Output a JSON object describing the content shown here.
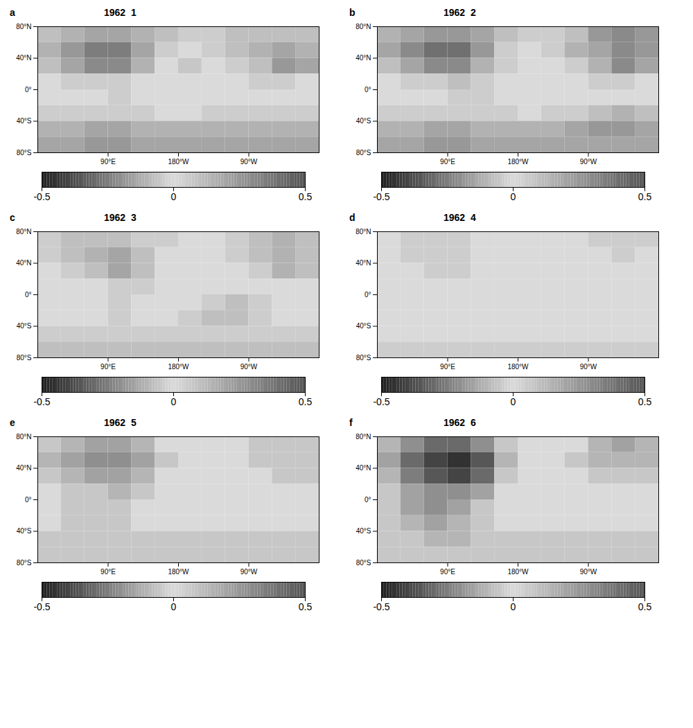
{
  "chart_data": [
    {
      "type": "heatmap",
      "panel_label": "a",
      "title": "1962  1",
      "x_edges": [
        0,
        30,
        60,
        90,
        120,
        150,
        180,
        210,
        240,
        270,
        300,
        330,
        360
      ],
      "y_edges": [
        80,
        60,
        40,
        20,
        0,
        -20,
        -40,
        -60,
        -80
      ],
      "values": [
        [
          0.1,
          0.15,
          0.2,
          0.2,
          0.15,
          0.1,
          0.05,
          0.05,
          0.1,
          0.1,
          0.1,
          0.1
        ],
        [
          0.15,
          0.25,
          0.35,
          0.35,
          0.2,
          0.05,
          0.0,
          0.05,
          0.1,
          0.15,
          0.2,
          0.15
        ],
        [
          0.1,
          0.2,
          0.3,
          0.3,
          0.15,
          0.0,
          -0.05,
          0.0,
          0.05,
          0.1,
          0.25,
          0.2
        ],
        [
          0.0,
          0.05,
          0.05,
          0.05,
          0.0,
          0.0,
          0.0,
          0.0,
          0.0,
          0.05,
          0.05,
          0.0
        ],
        [
          0.0,
          0.0,
          0.0,
          0.05,
          0.0,
          0.0,
          0.0,
          0.0,
          0.0,
          0.0,
          0.0,
          0.0
        ],
        [
          0.05,
          0.05,
          0.05,
          0.05,
          0.05,
          0.0,
          0.0,
          0.05,
          0.05,
          0.05,
          0.05,
          0.05
        ],
        [
          0.15,
          0.15,
          0.2,
          0.2,
          0.15,
          0.15,
          0.15,
          0.15,
          0.15,
          0.15,
          0.15,
          0.15
        ],
        [
          0.2,
          0.2,
          0.25,
          0.25,
          0.2,
          0.2,
          0.2,
          0.2,
          0.2,
          0.2,
          0.2,
          0.2
        ]
      ],
      "xlim": [
        0,
        360
      ],
      "ylim": [
        -80,
        80
      ],
      "xticks": [
        {
          "value": 90,
          "label": "90°E"
        },
        {
          "value": 180,
          "label": "180°W"
        },
        {
          "value": 270,
          "label": "90°W"
        }
      ],
      "yticks": [
        {
          "value": 80,
          "label": "80°N"
        },
        {
          "value": 40,
          "label": "40°N"
        },
        {
          "value": 0,
          "label": "0°"
        },
        {
          "value": -40,
          "label": "40°S"
        },
        {
          "value": -80,
          "label": "80°S"
        }
      ],
      "colorbar": {
        "range": [
          -0.5,
          0.5
        ],
        "ticks": [
          -0.5,
          0,
          0.5
        ]
      }
    },
    {
      "type": "heatmap",
      "panel_label": "b",
      "title": "1962  2",
      "x_edges": [
        0,
        30,
        60,
        90,
        120,
        150,
        180,
        210,
        240,
        270,
        300,
        330,
        360
      ],
      "y_edges": [
        80,
        60,
        40,
        20,
        0,
        -20,
        -40,
        -60,
        -80
      ],
      "values": [
        [
          0.15,
          0.2,
          0.25,
          0.25,
          0.2,
          0.1,
          0.05,
          0.05,
          0.1,
          0.25,
          0.3,
          0.25
        ],
        [
          0.2,
          0.3,
          0.4,
          0.4,
          0.25,
          0.05,
          0.0,
          0.05,
          0.15,
          0.2,
          0.3,
          0.25
        ],
        [
          0.1,
          0.2,
          0.3,
          0.3,
          0.15,
          0.05,
          0.0,
          0.0,
          0.05,
          0.15,
          0.3,
          0.2
        ],
        [
          0.0,
          0.05,
          0.05,
          0.1,
          0.05,
          0.0,
          0.0,
          0.0,
          0.0,
          0.05,
          0.05,
          0.0
        ],
        [
          0.0,
          0.0,
          0.0,
          0.05,
          0.05,
          0.0,
          0.0,
          0.0,
          0.0,
          0.0,
          0.0,
          0.0
        ],
        [
          0.05,
          0.05,
          0.05,
          0.05,
          0.05,
          0.05,
          0.0,
          0.05,
          0.05,
          0.1,
          0.15,
          0.1
        ],
        [
          0.15,
          0.15,
          0.2,
          0.2,
          0.15,
          0.15,
          0.15,
          0.15,
          0.2,
          0.25,
          0.25,
          0.2
        ],
        [
          0.2,
          0.2,
          0.25,
          0.25,
          0.2,
          0.2,
          0.2,
          0.2,
          0.2,
          0.2,
          0.2,
          0.2
        ]
      ],
      "xlim": [
        0,
        360
      ],
      "ylim": [
        -80,
        80
      ],
      "xticks": [
        {
          "value": 90,
          "label": "90°E"
        },
        {
          "value": 180,
          "label": "180°W"
        },
        {
          "value": 270,
          "label": "90°W"
        }
      ],
      "yticks": [
        {
          "value": 80,
          "label": "80°N"
        },
        {
          "value": 40,
          "label": "40°N"
        },
        {
          "value": 0,
          "label": "0°"
        },
        {
          "value": -40,
          "label": "40°S"
        },
        {
          "value": -80,
          "label": "80°S"
        }
      ],
      "colorbar": {
        "range": [
          -0.5,
          0.5
        ],
        "ticks": [
          -0.5,
          0,
          0.5
        ]
      }
    },
    {
      "type": "heatmap",
      "panel_label": "c",
      "title": "1962  3",
      "x_edges": [
        0,
        30,
        60,
        90,
        120,
        150,
        180,
        210,
        240,
        270,
        300,
        330,
        360
      ],
      "y_edges": [
        80,
        60,
        40,
        20,
        0,
        -20,
        -40,
        -60,
        -80
      ],
      "values": [
        [
          0.05,
          0.1,
          0.1,
          0.1,
          0.05,
          0.05,
          0.0,
          0.0,
          0.05,
          0.1,
          0.15,
          0.1
        ],
        [
          0.05,
          0.1,
          0.15,
          0.2,
          0.1,
          0.0,
          0.0,
          0.0,
          0.05,
          0.1,
          0.15,
          0.1
        ],
        [
          0.0,
          0.05,
          0.1,
          0.2,
          0.1,
          0.0,
          0.0,
          0.0,
          0.0,
          0.05,
          0.15,
          0.1
        ],
        [
          0.0,
          0.0,
          0.0,
          0.05,
          0.05,
          0.0,
          0.0,
          0.0,
          0.0,
          0.0,
          0.0,
          0.0
        ],
        [
          0.0,
          0.0,
          0.0,
          0.05,
          0.0,
          0.0,
          0.0,
          0.05,
          0.1,
          0.05,
          0.0,
          0.0
        ],
        [
          0.0,
          0.0,
          0.0,
          0.05,
          0.0,
          0.0,
          0.05,
          0.1,
          0.1,
          0.05,
          0.0,
          0.0
        ],
        [
          0.05,
          0.05,
          0.05,
          0.05,
          0.05,
          0.05,
          0.05,
          0.05,
          0.05,
          0.05,
          0.05,
          0.05
        ],
        [
          0.1,
          0.1,
          0.1,
          0.1,
          0.1,
          0.1,
          0.1,
          0.1,
          0.1,
          0.1,
          0.1,
          0.1
        ]
      ],
      "xlim": [
        0,
        360
      ],
      "ylim": [
        -80,
        80
      ],
      "xticks": [
        {
          "value": 90,
          "label": "90°E"
        },
        {
          "value": 180,
          "label": "180°W"
        },
        {
          "value": 270,
          "label": "90°W"
        }
      ],
      "yticks": [
        {
          "value": 80,
          "label": "80°N"
        },
        {
          "value": 40,
          "label": "40°N"
        },
        {
          "value": 0,
          "label": "0°"
        },
        {
          "value": -40,
          "label": "40°S"
        },
        {
          "value": -80,
          "label": "80°S"
        }
      ],
      "colorbar": {
        "range": [
          -0.5,
          0.5
        ],
        "ticks": [
          -0.5,
          0,
          0.5
        ]
      }
    },
    {
      "type": "heatmap",
      "panel_label": "d",
      "title": "1962  4",
      "x_edges": [
        0,
        30,
        60,
        90,
        120,
        150,
        180,
        210,
        240,
        270,
        300,
        330,
        360
      ],
      "y_edges": [
        80,
        60,
        40,
        20,
        0,
        -20,
        -40,
        -60,
        -80
      ],
      "values": [
        [
          0.0,
          0.05,
          0.05,
          0.05,
          0.0,
          0.0,
          0.0,
          0.0,
          0.0,
          0.05,
          0.05,
          0.05
        ],
        [
          0.0,
          0.05,
          0.05,
          0.05,
          0.0,
          0.0,
          0.0,
          0.0,
          0.0,
          0.0,
          0.05,
          0.0
        ],
        [
          0.0,
          0.0,
          0.05,
          0.05,
          0.0,
          0.0,
          0.0,
          0.0,
          0.0,
          0.0,
          0.0,
          0.0
        ],
        [
          0.0,
          0.0,
          0.0,
          0.0,
          0.0,
          0.0,
          0.0,
          0.0,
          0.0,
          0.0,
          0.0,
          0.0
        ],
        [
          0.0,
          0.0,
          0.0,
          0.0,
          0.0,
          0.0,
          0.0,
          0.0,
          0.0,
          0.0,
          0.0,
          0.0
        ],
        [
          0.0,
          0.0,
          0.0,
          0.0,
          0.0,
          0.0,
          0.0,
          0.0,
          0.0,
          0.0,
          0.0,
          0.0
        ],
        [
          0.0,
          0.0,
          0.0,
          0.0,
          0.0,
          0.0,
          0.0,
          0.0,
          0.0,
          0.0,
          0.0,
          0.0
        ],
        [
          0.05,
          0.05,
          0.05,
          0.05,
          0.05,
          0.05,
          0.05,
          0.05,
          0.05,
          0.05,
          0.05,
          0.05
        ]
      ],
      "xlim": [
        0,
        360
      ],
      "ylim": [
        -80,
        80
      ],
      "xticks": [
        {
          "value": 90,
          "label": "90°E"
        },
        {
          "value": 180,
          "label": "180°W"
        },
        {
          "value": 270,
          "label": "90°W"
        }
      ],
      "yticks": [
        {
          "value": 80,
          "label": "80°N"
        },
        {
          "value": 40,
          "label": "40°N"
        },
        {
          "value": 0,
          "label": "0°"
        },
        {
          "value": -40,
          "label": "40°S"
        },
        {
          "value": -80,
          "label": "80°S"
        }
      ],
      "colorbar": {
        "range": [
          -0.5,
          0.5
        ],
        "ticks": [
          -0.5,
          0,
          0.5
        ]
      }
    },
    {
      "type": "heatmap",
      "panel_label": "e",
      "title": "1962  5",
      "x_edges": [
        0,
        30,
        60,
        90,
        120,
        150,
        180,
        210,
        240,
        270,
        300,
        330,
        360
      ],
      "y_edges": [
        80,
        60,
        40,
        20,
        0,
        -20,
        -40,
        -60,
        -80
      ],
      "values": [
        [
          -0.05,
          -0.1,
          -0.15,
          -0.15,
          -0.1,
          0.0,
          0.0,
          0.0,
          0.0,
          -0.05,
          -0.05,
          -0.05
        ],
        [
          -0.1,
          -0.15,
          -0.2,
          -0.2,
          -0.15,
          -0.05,
          0.0,
          0.0,
          0.0,
          -0.05,
          -0.05,
          -0.05
        ],
        [
          -0.05,
          -0.1,
          -0.15,
          -0.15,
          -0.1,
          0.0,
          0.0,
          0.0,
          0.0,
          0.0,
          -0.05,
          -0.05
        ],
        [
          0.0,
          -0.05,
          -0.05,
          -0.1,
          -0.05,
          0.0,
          0.0,
          0.0,
          0.0,
          0.0,
          0.0,
          0.0
        ],
        [
          0.0,
          -0.05,
          -0.05,
          -0.05,
          0.0,
          0.0,
          0.0,
          0.0,
          0.0,
          0.0,
          0.0,
          0.0
        ],
        [
          0.0,
          -0.05,
          -0.05,
          -0.05,
          0.0,
          0.0,
          0.0,
          0.0,
          0.0,
          0.0,
          0.0,
          0.0
        ],
        [
          -0.05,
          -0.05,
          -0.05,
          -0.05,
          -0.05,
          -0.05,
          -0.05,
          -0.05,
          -0.05,
          -0.05,
          -0.05,
          -0.05
        ],
        [
          -0.05,
          -0.05,
          -0.05,
          -0.05,
          -0.05,
          -0.05,
          -0.05,
          -0.05,
          -0.05,
          -0.05,
          -0.05,
          -0.05
        ]
      ],
      "xlim": [
        0,
        360
      ],
      "ylim": [
        -80,
        80
      ],
      "xticks": [
        {
          "value": 90,
          "label": "90°E"
        },
        {
          "value": 180,
          "label": "180°W"
        },
        {
          "value": 270,
          "label": "90°W"
        }
      ],
      "yticks": [
        {
          "value": 80,
          "label": "80°N"
        },
        {
          "value": 40,
          "label": "40°N"
        },
        {
          "value": 0,
          "label": "0°"
        },
        {
          "value": -40,
          "label": "40°S"
        },
        {
          "value": -80,
          "label": "80°S"
        }
      ],
      "colorbar": {
        "range": [
          -0.5,
          0.5
        ],
        "ticks": [
          -0.5,
          0,
          0.5
        ]
      }
    },
    {
      "type": "heatmap",
      "panel_label": "f",
      "title": "1962  6",
      "x_edges": [
        0,
        30,
        60,
        90,
        120,
        150,
        180,
        210,
        240,
        270,
        300,
        330,
        360
      ],
      "y_edges": [
        80,
        60,
        40,
        20,
        0,
        -20,
        -40,
        -60,
        -80
      ],
      "values": [
        [
          -0.1,
          -0.2,
          -0.3,
          -0.3,
          -0.2,
          -0.05,
          0.0,
          0.0,
          0.0,
          -0.1,
          -0.15,
          -0.1
        ],
        [
          -0.15,
          -0.3,
          -0.4,
          -0.45,
          -0.35,
          -0.1,
          0.0,
          0.0,
          -0.05,
          -0.1,
          -0.1,
          -0.1
        ],
        [
          -0.1,
          -0.25,
          -0.35,
          -0.4,
          -0.3,
          -0.05,
          0.0,
          0.0,
          0.0,
          -0.05,
          -0.05,
          -0.05
        ],
        [
          -0.05,
          -0.15,
          -0.2,
          -0.2,
          -0.15,
          0.0,
          0.0,
          0.0,
          0.0,
          0.0,
          0.0,
          0.0
        ],
        [
          -0.05,
          -0.15,
          -0.2,
          -0.15,
          -0.05,
          0.0,
          0.0,
          0.0,
          0.0,
          0.0,
          0.0,
          0.0
        ],
        [
          -0.05,
          -0.1,
          -0.15,
          -0.1,
          -0.05,
          0.0,
          0.0,
          0.0,
          0.0,
          0.0,
          0.0,
          0.0
        ],
        [
          -0.05,
          -0.05,
          -0.1,
          -0.1,
          -0.05,
          -0.05,
          -0.05,
          -0.05,
          -0.05,
          -0.05,
          -0.05,
          -0.05
        ],
        [
          -0.05,
          -0.05,
          -0.05,
          -0.05,
          -0.05,
          -0.05,
          -0.05,
          -0.05,
          -0.05,
          -0.05,
          -0.05,
          -0.05
        ]
      ],
      "xlim": [
        0,
        360
      ],
      "ylim": [
        -80,
        80
      ],
      "xticks": [
        {
          "value": 90,
          "label": "90°E"
        },
        {
          "value": 180,
          "label": "180°W"
        },
        {
          "value": 270,
          "label": "90°W"
        }
      ],
      "yticks": [
        {
          "value": 80,
          "label": "80°N"
        },
        {
          "value": 40,
          "label": "40°N"
        },
        {
          "value": 0,
          "label": "0°"
        },
        {
          "value": -40,
          "label": "40°S"
        },
        {
          "value": -80,
          "label": "80°S"
        }
      ],
      "colorbar": {
        "range": [
          -0.5,
          0.5
        ],
        "ticks": [
          -0.5,
          0,
          0.5
        ]
      }
    }
  ]
}
